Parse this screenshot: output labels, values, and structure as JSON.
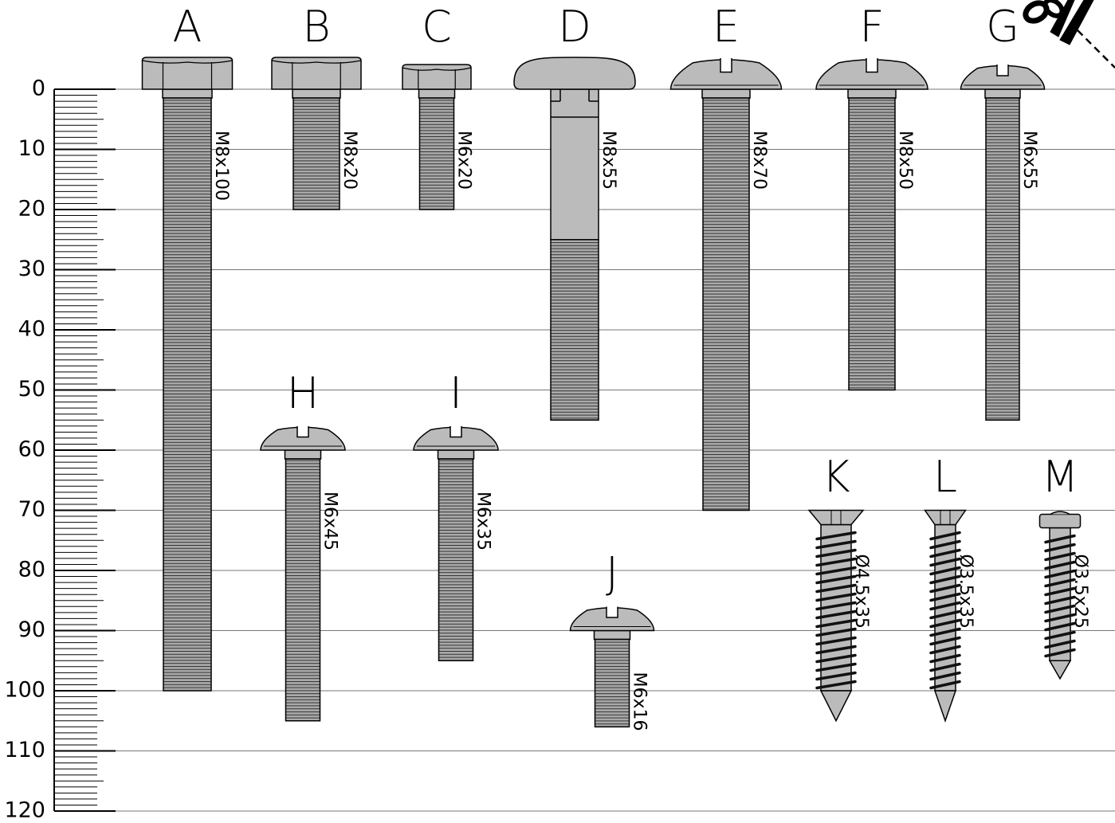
{
  "ruler": {
    "ticks": [
      0,
      10,
      20,
      30,
      40,
      50,
      60,
      70,
      80,
      90,
      100,
      110,
      120
    ]
  },
  "screws": [
    {
      "letter": "A",
      "label": "M8x100"
    },
    {
      "letter": "B",
      "label": "M8x20"
    },
    {
      "letter": "C",
      "label": "M6x20"
    },
    {
      "letter": "D",
      "label": "M8x55"
    },
    {
      "letter": "E",
      "label": "M8x70"
    },
    {
      "letter": "F",
      "label": "M8x50"
    },
    {
      "letter": "G",
      "label": "M6x55"
    },
    {
      "letter": "H",
      "label": "M6x45"
    },
    {
      "letter": "I",
      "label": "M6x35"
    },
    {
      "letter": "J",
      "label": "M6x16"
    },
    {
      "letter": "K",
      "label": "Ø4.5x35"
    },
    {
      "letter": "L",
      "label": "Ø3.5x35"
    },
    {
      "letter": "M",
      "label": "Ø3.5x25"
    }
  ]
}
